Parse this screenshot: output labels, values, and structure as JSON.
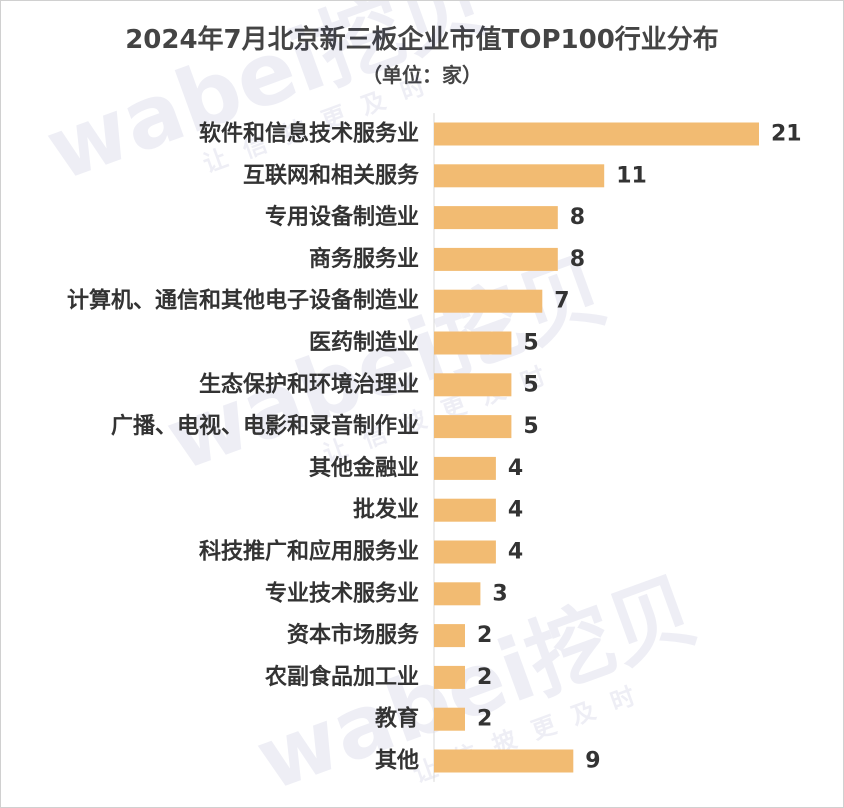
{
  "chart_data": {
    "type": "bar",
    "orientation": "horizontal",
    "title": "2024年7月北京新三板企业市值TOP100行业分布",
    "subtitle": "（单位：家）",
    "categories": [
      "软件和信息技术服务业",
      "互联网和相关服务",
      "专用设备制造业",
      "商务服务业",
      "计算机、通信和其他电子设备制造业",
      "医药制造业",
      "生态保护和环境治理业",
      "广播、电视、电影和录音制作业",
      "其他金融业",
      "批发业",
      "科技推广和应用服务业",
      "专业技术服务业",
      "资本市场服务",
      "农副食品加工业",
      "教育",
      "其他"
    ],
    "values": [
      21,
      11,
      8,
      8,
      7,
      5,
      5,
      5,
      4,
      4,
      4,
      3,
      2,
      2,
      2,
      9
    ],
    "xlim": [
      0,
      21
    ],
    "grid": false,
    "legend": "none",
    "data_labels": true,
    "bar_color": "#f2bb72"
  },
  "watermark": {
    "logo_text": "wabei挖贝",
    "slogan": "让信披更及时"
  }
}
